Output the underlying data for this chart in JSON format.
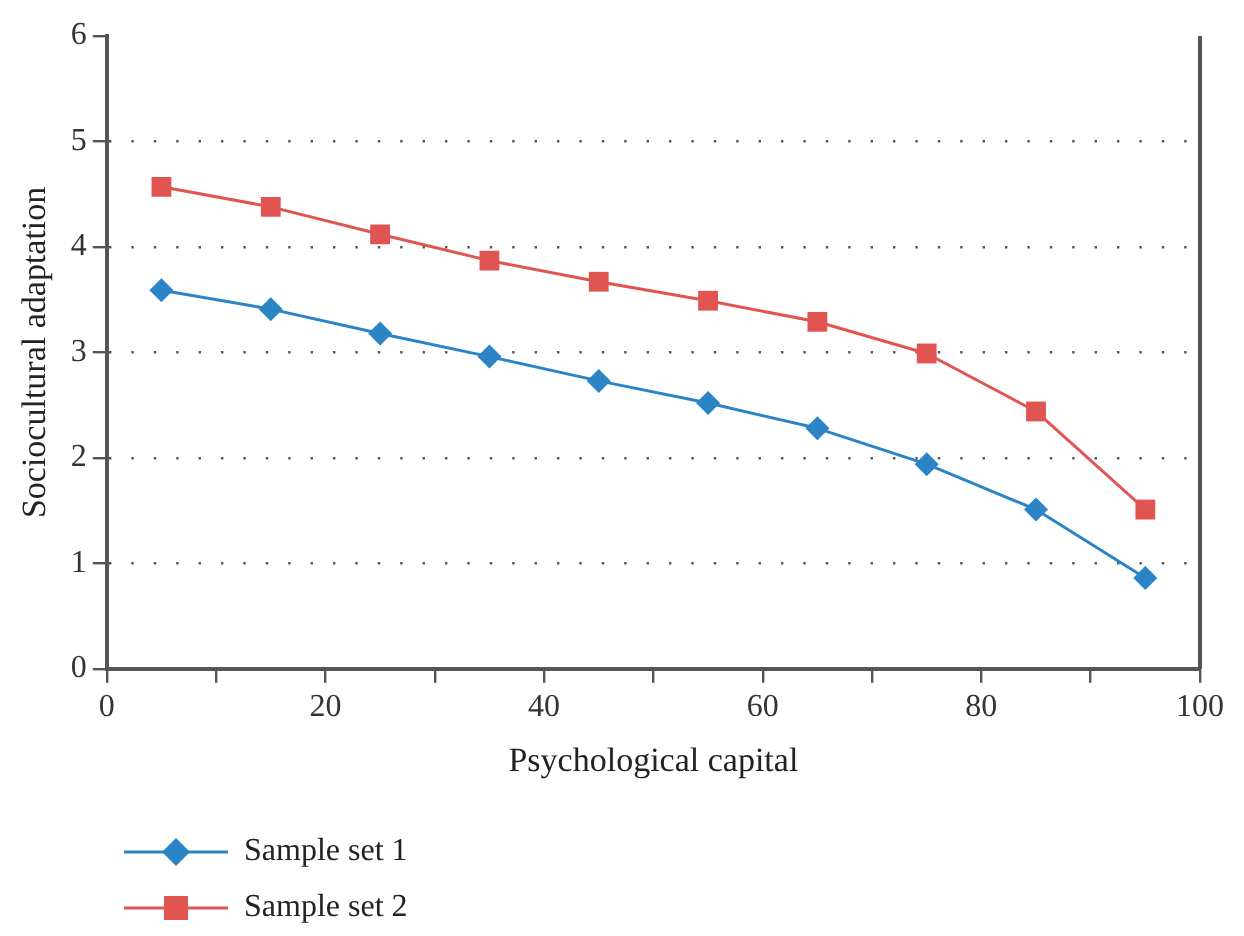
{
  "chart_data": {
    "type": "line",
    "xlabel": "Psychological capital",
    "ylabel": "Sociocultural adaptation",
    "x": [
      5,
      15,
      25,
      35,
      45,
      55,
      65,
      75,
      85,
      95
    ],
    "series": [
      {
        "name": "Sample set 1",
        "color": "#2a84c6",
        "marker": "diamond",
        "values": [
          3.59,
          3.41,
          3.18,
          2.96,
          2.73,
          2.52,
          2.28,
          1.94,
          1.51,
          0.86
        ]
      },
      {
        "name": "Sample set 2",
        "color": "#e05552",
        "marker": "square",
        "values": [
          4.57,
          4.38,
          4.12,
          3.87,
          3.67,
          3.49,
          3.29,
          2.99,
          2.44,
          1.51
        ]
      }
    ],
    "xlim": [
      0,
      100
    ],
    "xticks": [
      0,
      {
        "value": 10,
        "label": null
      },
      20,
      {
        "value": 30,
        "label": null
      },
      40,
      {
        "value": 50,
        "label": null
      },
      60,
      {
        "value": 70,
        "label": null
      },
      80,
      {
        "value": 90,
        "label": null
      },
      100
    ],
    "ylim": [
      0,
      6
    ],
    "yticks": [
      0,
      1,
      2,
      3,
      4,
      5,
      6
    ],
    "grid": "y",
    "legend": "bottom",
    "line_style": "solid"
  }
}
